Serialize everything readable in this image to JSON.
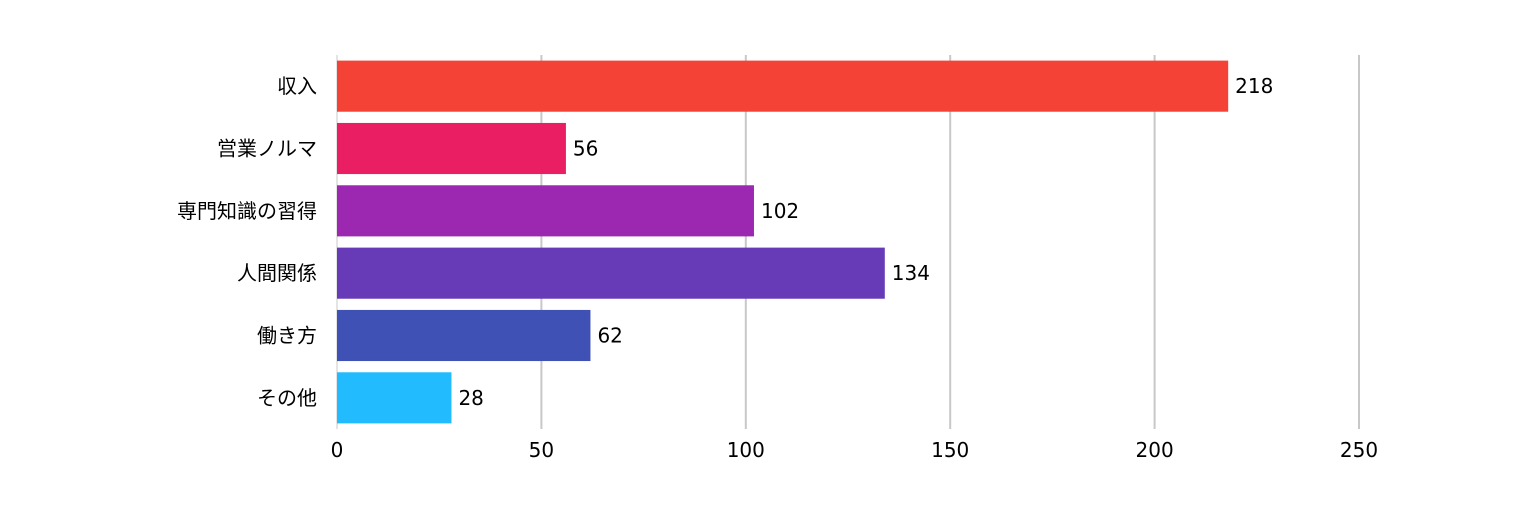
{
  "chart_data": {
    "type": "bar",
    "orientation": "horizontal",
    "categories": [
      "収入",
      "営業ノルマ",
      "専門知識の習得",
      "人間関係",
      "働き方",
      "その他"
    ],
    "values": [
      218,
      56,
      102,
      134,
      62,
      28
    ],
    "colors": [
      "#f44336",
      "#e91e63",
      "#9c27b0",
      "#673ab7",
      "#3f51b5",
      "#22bbfd"
    ],
    "xlim": [
      0,
      250
    ],
    "xticks": [
      0,
      50,
      100,
      150,
      200,
      250
    ],
    "title": "",
    "xlabel": "",
    "ylabel": "",
    "grid": true,
    "data_labels": true
  }
}
